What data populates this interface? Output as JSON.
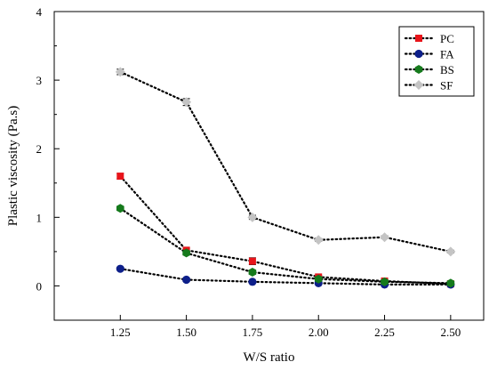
{
  "chart_data": {
    "type": "line",
    "xlabel": "W/S ratio",
    "ylabel": "Plastic viscosity (Pa.s)",
    "xlim": [
      1.0,
      2.625
    ],
    "ylim": [
      -0.5,
      4
    ],
    "x_ticks": [
      "1.25",
      "1.50",
      "1.75",
      "2.00",
      "2.25",
      "2.50"
    ],
    "y_ticks": [
      "0",
      "1",
      "2",
      "3",
      "4"
    ],
    "grid": false,
    "legend_position": "top-right",
    "x": [
      1.25,
      1.5,
      1.75,
      2.0,
      2.25,
      2.5
    ],
    "series": [
      {
        "name": "PC",
        "color": "#e8141a",
        "marker": "square",
        "values": [
          1.6,
          0.52,
          0.36,
          0.13,
          0.07,
          0.03
        ],
        "errors": [
          0.04,
          0.03,
          0.05,
          0.02,
          0.02,
          0.02
        ]
      },
      {
        "name": "FA",
        "color": "#0d1f8a",
        "marker": "circle",
        "values": [
          0.25,
          0.09,
          0.06,
          0.04,
          0.02,
          0.02
        ],
        "errors": [
          0.02,
          0.02,
          0.02,
          0.02,
          0.02,
          0.02
        ]
      },
      {
        "name": "BS",
        "color": "#157a1c",
        "marker": "hexagon",
        "values": [
          1.13,
          0.48,
          0.2,
          0.1,
          0.06,
          0.04
        ],
        "errors": [
          0.03,
          0.03,
          0.03,
          0.02,
          0.02,
          0.02
        ]
      },
      {
        "name": "SF",
        "color": "#c4c4c4",
        "marker": "diamond",
        "values": [
          3.12,
          2.68,
          1.0,
          0.67,
          0.71,
          0.5
        ],
        "errors": [
          0.04,
          0.05,
          0.03,
          0.02,
          0.02,
          0.02
        ]
      }
    ]
  }
}
